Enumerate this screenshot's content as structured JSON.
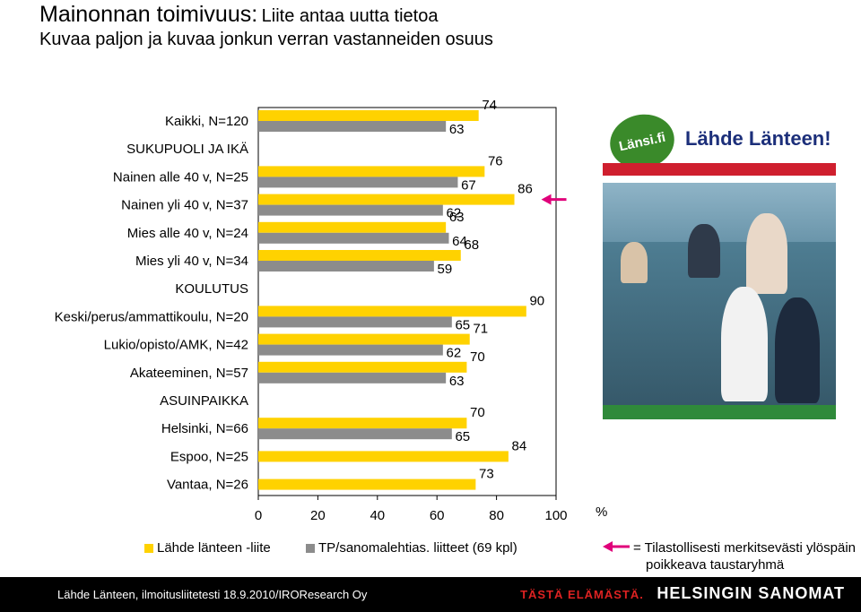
{
  "header": {
    "title_main": "Mainonnan toimivuus:",
    "title_sub": "Liite antaa uutta tietoa",
    "subtitle": "Kuvaa paljon ja kuvaa jonkun verran vastanneiden osuus"
  },
  "chart_data": {
    "type": "bar",
    "orientation": "horizontal",
    "categories": [
      "Kaikki, N=120",
      "SUKUPUOLI JA IKÄ",
      "Nainen alle 40 v, N=25",
      "Nainen yli 40 v, N=37",
      "Mies alle 40 v, N=24",
      "Mies yli 40 v, N=34",
      "KOULUTUS",
      "Keski/perus/ammattikoulu, N=20",
      "Lukio/opisto/AMK, N=42",
      "Akateeminen, N=57",
      "ASUINPAIKKA",
      "Helsinki, N=66",
      "Espoo, N=25",
      "Vantaa, N=26"
    ],
    "series": [
      {
        "name": "Lähde länteen -liite",
        "color": "#ffd200",
        "values": [
          74,
          null,
          76,
          86,
          63,
          68,
          null,
          90,
          71,
          70,
          null,
          70,
          84,
          73
        ]
      },
      {
        "name": "TP/sanomalehtias. liitteet (69 kpl)",
        "color": "#8c8c8c",
        "values": [
          63,
          null,
          67,
          62,
          64,
          59,
          null,
          65,
          62,
          63,
          null,
          65,
          null,
          null
        ]
      }
    ],
    "significant": [
      false,
      false,
      false,
      true,
      false,
      false,
      false,
      false,
      false,
      false,
      false,
      false,
      false,
      false
    ],
    "xlim": [
      0,
      100
    ],
    "xticks": [
      0,
      20,
      40,
      60,
      80,
      100
    ],
    "xunit": "%"
  },
  "legend": {
    "sig_note_line1": "= Tilastollisesti merkitsevästi ylöspäin",
    "sig_note_line2": "poikkeava taustaryhmä",
    "arrow_color": "#e0007a"
  },
  "ad": {
    "logo_text": "Länsi.fi",
    "title": "Lähde Länteen!"
  },
  "footer": {
    "source": "Lähde Länteen, ilmoitusliitetesti 18.9.2010/IROResearch Oy",
    "slogan": "TÄSTÄ ELÄMÄSTÄ.",
    "brand": "HELSINGIN SANOMAT"
  }
}
